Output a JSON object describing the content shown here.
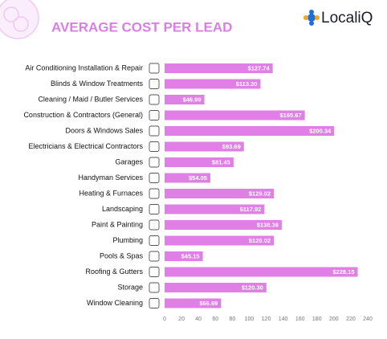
{
  "brand": "LocaliQ",
  "chart_data": {
    "type": "bar",
    "orientation": "horizontal",
    "title": "AVERAGE COST PER LEAD",
    "categories": [
      "Air Conditioning Installation & Repair",
      "Blinds & Window Treatments",
      "Cleaning / Maid / Butler Services",
      "Construction & Contractors (General)",
      "Doors & Windows Sales",
      "Electricians & Electrical Contractors",
      "Garages",
      "Handyman Services",
      "Heating & Furnaces",
      "Landscaping",
      "Paint & Painting",
      "Plumbing",
      "Pools & Spas",
      "Roofing & Gutters",
      "Storage",
      "Window Cleaning"
    ],
    "values": [
      127.74,
      113.3,
      46.99,
      165.67,
      200.34,
      93.69,
      81.45,
      54.05,
      129.02,
      117.92,
      138.38,
      129.02,
      45.15,
      228.15,
      120.3,
      66.69
    ],
    "value_labels": [
      "$127.74",
      "$113.30",
      "$46.99",
      "$165.67",
      "$200.34",
      "$93.69",
      "$81.45",
      "$54.05",
      "$129.02",
      "$117.92",
      "$138.38",
      "$129.02",
      "$45.15",
      "$228.15",
      "$120.30",
      "$66.69"
    ],
    "color": "#e07fe6",
    "xlim": [
      0,
      240
    ],
    "xticks": [
      0,
      20,
      40,
      60,
      80,
      100,
      120,
      140,
      160,
      180,
      200,
      220,
      240
    ],
    "grid": false
  }
}
